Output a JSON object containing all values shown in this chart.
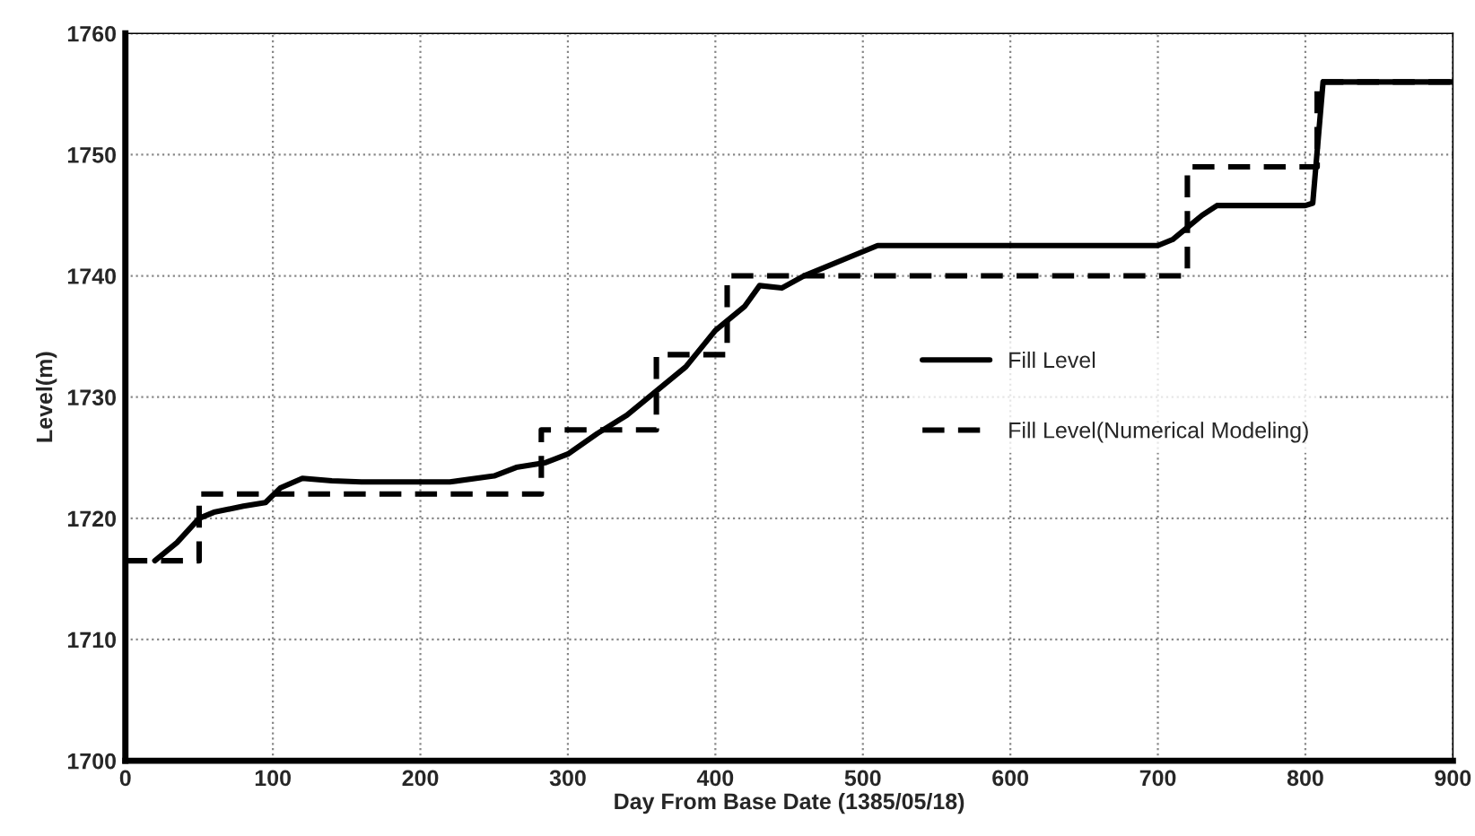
{
  "chart_data": {
    "type": "line",
    "xlabel": "Day From Base Date (1385/05/18)",
    "ylabel": "Level(m)",
    "xlim": [
      0,
      900
    ],
    "xticks": [
      0,
      100,
      200,
      300,
      400,
      500,
      600,
      700,
      800,
      900
    ],
    "ylim": [
      1700,
      1760
    ],
    "yticks": [
      1700,
      1710,
      1720,
      1730,
      1740,
      1750,
      1760
    ],
    "grid": true,
    "legend": "center right",
    "series": [
      {
        "name": "Fill Level",
        "color": "#000000",
        "line_style": "solid",
        "x": [
          20,
          35,
          50,
          60,
          80,
          95,
          105,
          120,
          140,
          160,
          200,
          220,
          250,
          265,
          285,
          300,
          320,
          340,
          360,
          380,
          400,
          420,
          430,
          445,
          460,
          490,
          510,
          520,
          700,
          710,
          730,
          740,
          760,
          800,
          805,
          812,
          900
        ],
        "values": [
          1716.5,
          1718,
          1720,
          1720.5,
          1721,
          1721.3,
          1722.5,
          1723.3,
          1723.1,
          1723,
          1723,
          1723,
          1723.5,
          1724.2,
          1724.6,
          1725.3,
          1727,
          1728.5,
          1730.5,
          1732.5,
          1735.5,
          1737.5,
          1739.2,
          1739,
          1740,
          1741.5,
          1742.5,
          1742.5,
          1742.5,
          1743,
          1745,
          1745.8,
          1745.8,
          1745.8,
          1746,
          1756,
          1756
        ]
      },
      {
        "name": "Fill Level(Numerical Modeling)",
        "type": "step",
        "color": "#000000",
        "line_style": "dashed",
        "x": [
          0,
          50,
          282,
          360,
          408,
          720,
          808,
          900
        ],
        "values": [
          1716.5,
          1722,
          1727.3,
          1733.5,
          1740,
          1749,
          1756,
          1756
        ]
      }
    ]
  }
}
